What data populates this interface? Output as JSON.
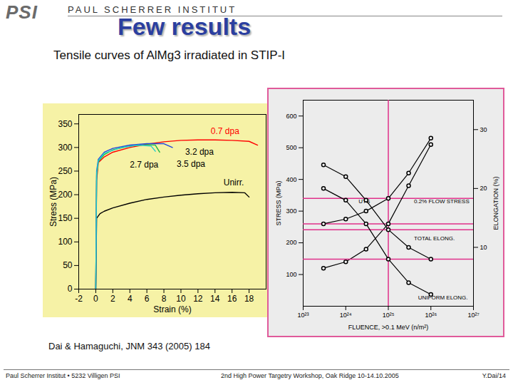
{
  "page": {
    "logo": "PSI",
    "institute": "PAUL SCHERRER INSTITUT",
    "title": "Few results",
    "subtitle": "Tensile curves of AlMg3 irradiated in STIP-I",
    "caption": "Dai & Hamaguchi,  JNM 343 (2005) 184",
    "footer": [
      "Paul Scherrer Institut • 5232 Villigen PSI",
      "2nd High Power Targetry Workshop, Oak Ridge 10-14.10.2005",
      "Y.Dai/14"
    ]
  },
  "chart_data": [
    {
      "type": "line",
      "xlabel": "Strain (%)",
      "ylabel": "Stress (MPa)",
      "xlim": [
        -2,
        20
      ],
      "ylim": [
        0,
        370
      ],
      "xticks": [
        -2,
        0,
        2,
        4,
        6,
        8,
        10,
        12,
        14,
        16,
        18
      ],
      "yticks": [
        0,
        50,
        100,
        150,
        200,
        250,
        300,
        350
      ],
      "series": [
        {
          "name": "Unirr.",
          "color": "#000000",
          "label_color": "#000000",
          "label_x": 15,
          "label_y": 225,
          "x": [
            0,
            0.1,
            0.5,
            1,
            2,
            4,
            6,
            8,
            10,
            12,
            14,
            16,
            17.5,
            18
          ],
          "values": [
            0,
            150,
            160,
            165,
            172,
            182,
            190,
            195,
            199,
            202,
            204,
            205,
            204,
            195
          ]
        },
        {
          "name": "0.7 dpa",
          "color": "#ff0000",
          "label_color": "#ff0000",
          "label_x": 13.5,
          "label_y": 335,
          "x": [
            0,
            0.1,
            0.3,
            1,
            2,
            4,
            6,
            8,
            10,
            12,
            14,
            16,
            18,
            19
          ],
          "values": [
            0,
            230,
            268,
            280,
            290,
            300,
            307,
            312,
            315,
            316,
            316,
            315,
            313,
            305
          ]
        },
        {
          "name": "2.7 dpa",
          "color": "#22bb44",
          "label_color": "#000000",
          "label_x": 4,
          "label_y": 263,
          "x": [
            0,
            0.1,
            0.3,
            1,
            2,
            4,
            6,
            7,
            7.5
          ],
          "values": [
            0,
            240,
            270,
            285,
            295,
            303,
            306,
            305,
            290
          ]
        },
        {
          "name": "3.2 dpa",
          "color": "#2244dd",
          "label_color": "#000000",
          "label_x": 10.5,
          "label_y": 290,
          "x": [
            0,
            0.1,
            0.3,
            1,
            2,
            4,
            6,
            8,
            9
          ],
          "values": [
            0,
            250,
            275,
            290,
            298,
            305,
            308,
            308,
            300
          ]
        },
        {
          "name": "3.5 dpa",
          "color": "#22cccc",
          "label_color": "#000000",
          "label_x": 9.5,
          "label_y": 265,
          "x": [
            0,
            0.1,
            0.3,
            1,
            3,
            5,
            6.5,
            7
          ],
          "values": [
            0,
            245,
            272,
            288,
            300,
            305,
            303,
            292
          ]
        }
      ]
    },
    {
      "type": "line",
      "log": "x",
      "xlabel": "FLUENCE, >0.1 MeV (n/m²)",
      "ylabel": "STRESS (MPa)",
      "y2label": "ELONGATION (%)",
      "xlim": [
        1e+23,
        1e+27
      ],
      "xticks": [
        {
          "value": 1e+23,
          "label": "10²³"
        },
        {
          "value": 1e+24,
          "label": "10²⁴"
        },
        {
          "value": 1e+25,
          "label": "10²⁵"
        },
        {
          "value": 1e+26,
          "label": "10²⁶"
        },
        {
          "value": 1e+27,
          "label": "10²⁷"
        }
      ],
      "ylim": [
        0,
        650
      ],
      "yticks": [
        100,
        200,
        300,
        400,
        500,
        600
      ],
      "y2lim": [
        0,
        35
      ],
      "y2ticks": [
        10,
        20,
        30
      ],
      "series": [
        {
          "name": "UTS",
          "color": "#000000",
          "marker": "circle",
          "label_x": 2e+24,
          "label_y": 330,
          "x": [
            3e+23,
            1e+24,
            3e+24,
            1e+25,
            3e+25,
            1e+26
          ],
          "values": [
            260,
            275,
            300,
            340,
            420,
            530
          ]
        },
        {
          "name": "0.2% FLOW STRESS",
          "color": "#000000",
          "marker": "circle",
          "label_x": 4e+25,
          "label_y": 330,
          "x": [
            3e+23,
            1e+24,
            3e+24,
            1e+25,
            3e+25,
            1e+26
          ],
          "values": [
            120,
            140,
            180,
            260,
            380,
            510
          ]
        },
        {
          "name": "TOTAL ELONG.",
          "color": "#000000",
          "marker": "circle",
          "axis": "y2",
          "label_x": 4e+25,
          "label_y": 11.5,
          "x": [
            3e+23,
            1e+24,
            3e+24,
            1e+25,
            3e+25,
            1e+26
          ],
          "values": [
            24,
            22,
            18,
            13,
            10,
            8
          ]
        },
        {
          "name": "UNIFORM ELONG.",
          "color": "#000000",
          "marker": "circle",
          "axis": "y2",
          "label_x": 5e+25,
          "label_y": 1.5,
          "x": [
            3e+23,
            1e+24,
            3e+24,
            1e+25,
            3e+25,
            1e+26
          ],
          "values": [
            20,
            18,
            14,
            8,
            4,
            2
          ]
        }
      ],
      "reference_lines": {
        "color": "#e0308a",
        "x": [
          1e+25
        ],
        "y": [
          340,
          260
        ],
        "y2": [
          13,
          8
        ]
      }
    }
  ]
}
